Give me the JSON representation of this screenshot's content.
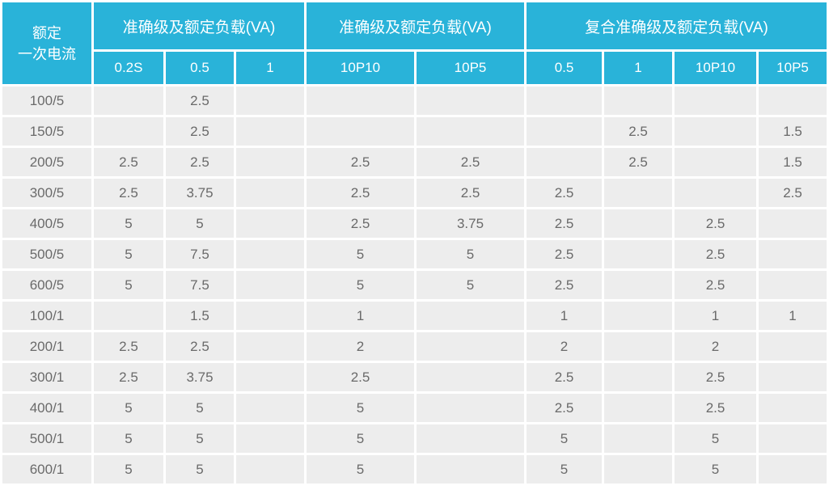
{
  "table": {
    "corner_header": {
      "line1": "额定",
      "line2": "一次电流"
    },
    "groups": [
      {
        "label": "准确级及额定负载(VA)",
        "cols": [
          "0.2S",
          "0.5",
          "1"
        ]
      },
      {
        "label": "准确级及额定负载(VA)",
        "cols": [
          "10P10",
          "10P5"
        ]
      },
      {
        "label": "复合准确级及额定负载(VA)",
        "cols": [
          "0.5",
          "1",
          "10P10",
          "10P5"
        ]
      }
    ],
    "rows": [
      {
        "current": "100/5",
        "values": [
          "",
          "2.5",
          "",
          "",
          "",
          "",
          "",
          "",
          ""
        ]
      },
      {
        "current": "150/5",
        "values": [
          "",
          "2.5",
          "",
          "",
          "",
          "",
          "2.5",
          "",
          "1.5"
        ]
      },
      {
        "current": "200/5",
        "values": [
          "2.5",
          "2.5",
          "",
          "2.5",
          "2.5",
          "",
          "2.5",
          "",
          "1.5"
        ]
      },
      {
        "current": "300/5",
        "values": [
          "2.5",
          "3.75",
          "",
          "2.5",
          "2.5",
          "2.5",
          "",
          "",
          "2.5"
        ]
      },
      {
        "current": "400/5",
        "values": [
          "5",
          "5",
          "",
          "2.5",
          "3.75",
          "2.5",
          "",
          "2.5",
          ""
        ]
      },
      {
        "current": "500/5",
        "values": [
          "5",
          "7.5",
          "",
          "5",
          "5",
          "2.5",
          "",
          "2.5",
          ""
        ]
      },
      {
        "current": "600/5",
        "values": [
          "5",
          "7.5",
          "",
          "5",
          "5",
          "2.5",
          "",
          "2.5",
          ""
        ]
      },
      {
        "current": "100/1",
        "values": [
          "",
          "1.5",
          "",
          "1",
          "",
          "1",
          "",
          "1",
          "1"
        ]
      },
      {
        "current": "200/1",
        "values": [
          "2.5",
          "2.5",
          "",
          "2",
          "",
          "2",
          "",
          "2",
          ""
        ]
      },
      {
        "current": "300/1",
        "values": [
          "2.5",
          "3.75",
          "",
          "2.5",
          "",
          "2.5",
          "",
          "2.5",
          ""
        ]
      },
      {
        "current": "400/1",
        "values": [
          "5",
          "5",
          "",
          "5",
          "",
          "2.5",
          "",
          "2.5",
          ""
        ]
      },
      {
        "current": "500/1",
        "values": [
          "5",
          "5",
          "",
          "5",
          "",
          "5",
          "",
          "5",
          ""
        ]
      },
      {
        "current": "600/1",
        "values": [
          "5",
          "5",
          "",
          "5",
          "",
          "5",
          "",
          "5",
          ""
        ]
      }
    ]
  },
  "colors": {
    "header_bg": "#29b3d9",
    "header_text": "#ffffff",
    "cell_bg": "#ededed",
    "cell_text": "#6a6a6a",
    "grid_gap": "#ffffff"
  }
}
